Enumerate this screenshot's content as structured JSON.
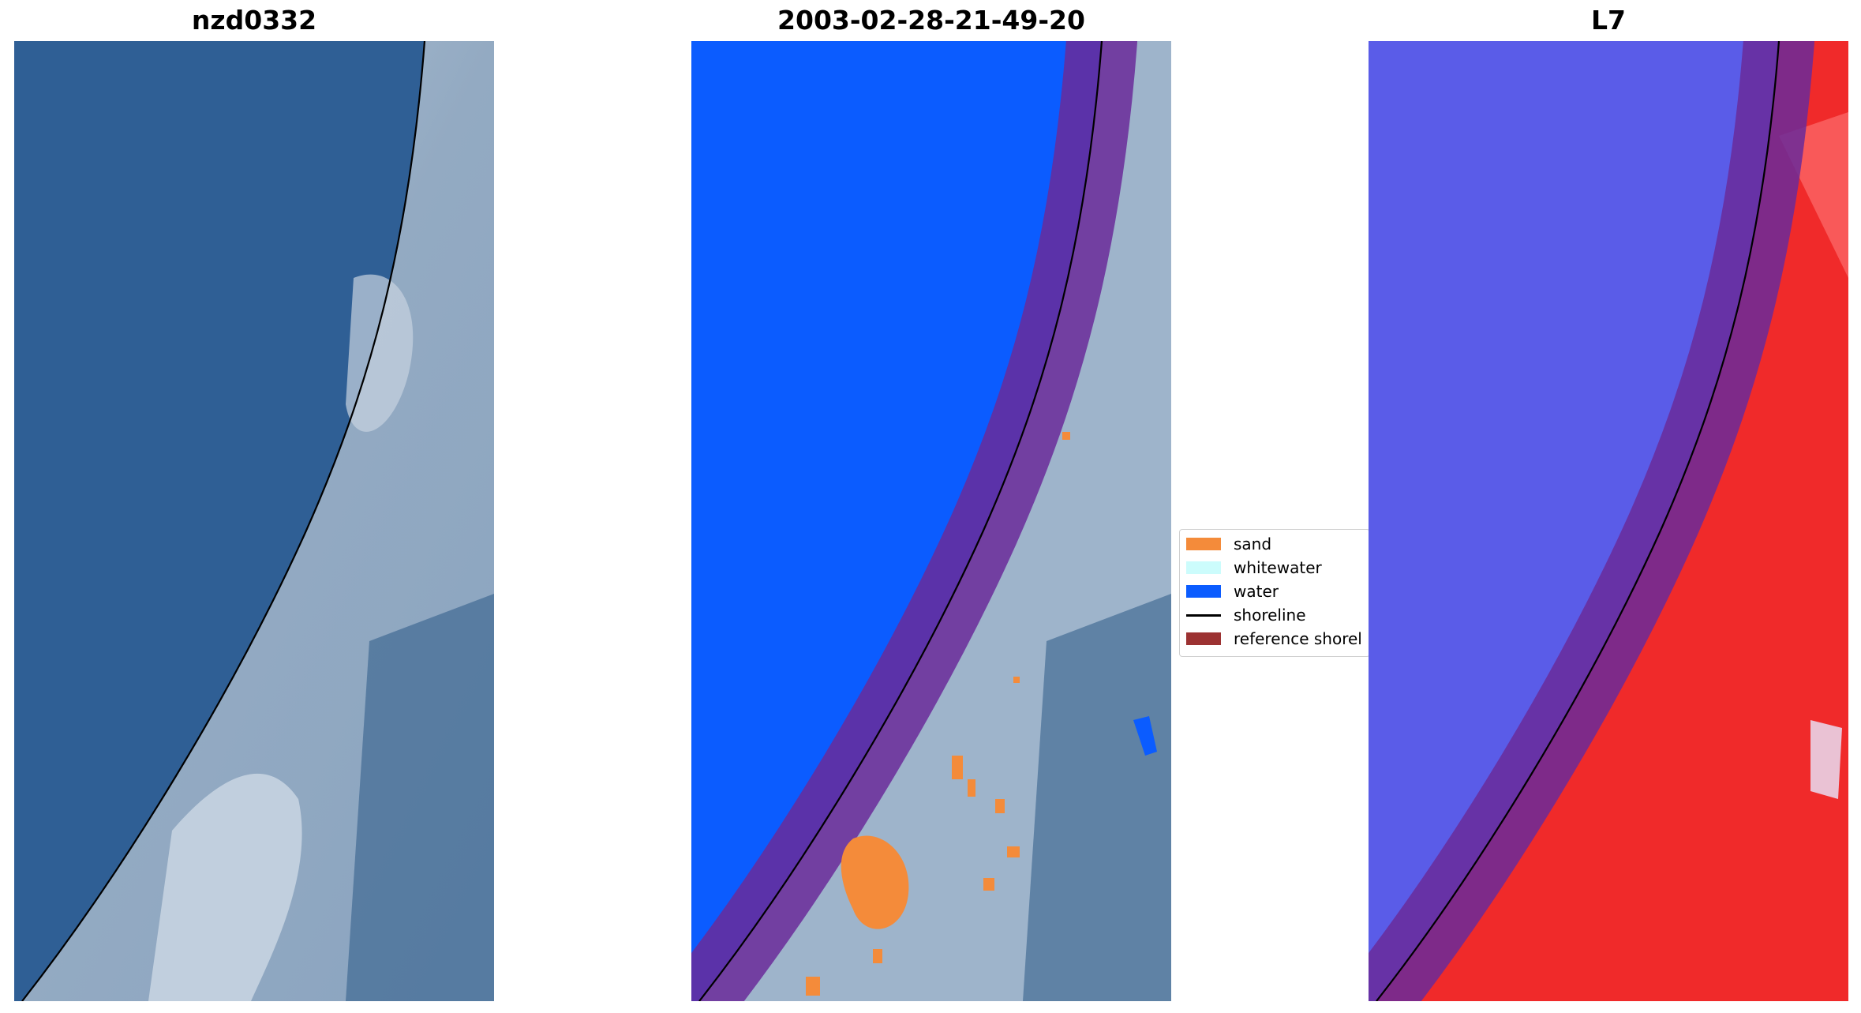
{
  "panels": [
    {
      "title": "nzd0332"
    },
    {
      "title": "2003-02-28-21-49-20"
    },
    {
      "title": "L7"
    }
  ],
  "legend": {
    "items": [
      {
        "label": "sand",
        "color": "#f48b3a",
        "kind": "patch"
      },
      {
        "label": "whitewater",
        "color": "#ccfcfc",
        "kind": "patch"
      },
      {
        "label": "water",
        "color": "#0b5cff",
        "kind": "patch"
      },
      {
        "label": "shoreline",
        "color": "#000000",
        "kind": "line"
      },
      {
        "label": "reference shorel",
        "color": "#9c3232",
        "kind": "patch"
      }
    ]
  },
  "colors": {
    "sea_rgb": "#2f5f95",
    "land_rgb": "#9eb4cb",
    "class_water": "#0b5cff",
    "class_sand": "#f48b3a",
    "reference_band": "#7a2a8a",
    "index_water": "#5a5ce8",
    "index_land": "#f02a2a"
  }
}
